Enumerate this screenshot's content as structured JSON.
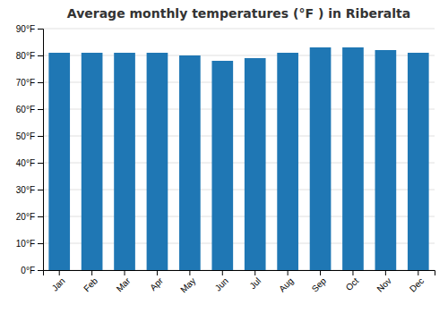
{
  "chart_data": {
    "type": "bar",
    "title": "Average monthly temperatures (°F ) in Riberalta",
    "categories": [
      "Jan",
      "Feb",
      "Mar",
      "Apr",
      "May",
      "Jun",
      "Jul",
      "Aug",
      "Sep",
      "Oct",
      "Nov",
      "Dec"
    ],
    "values": [
      81,
      81,
      81,
      81,
      80,
      78,
      79,
      81,
      83,
      83,
      82,
      81
    ],
    "ylim": [
      0,
      90
    ],
    "yticks": [
      {
        "value": 0,
        "label": "0°F"
      },
      {
        "value": 10,
        "label": "10°F"
      },
      {
        "value": 20,
        "label": "20°F"
      },
      {
        "value": 30,
        "label": "30°F"
      },
      {
        "value": 40,
        "label": "40°F"
      },
      {
        "value": 50,
        "label": "50°F"
      },
      {
        "value": 60,
        "label": "60°F"
      },
      {
        "value": 70,
        "label": "70°F"
      },
      {
        "value": 80,
        "label": "80°F"
      },
      {
        "value": 90,
        "label": "90°F"
      }
    ],
    "grid": true
  }
}
